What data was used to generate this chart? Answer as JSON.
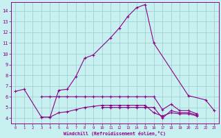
{
  "xlabel": "Windchill (Refroidissement éolien,°C)",
  "bg_color": "#c8f0f0",
  "grid_color": "#99cccc",
  "line_color": "#880088",
  "xlim": [
    -0.5,
    23.5
  ],
  "ylim": [
    3.5,
    14.8
  ],
  "xticks": [
    0,
    1,
    2,
    3,
    4,
    5,
    6,
    7,
    8,
    9,
    10,
    11,
    12,
    13,
    14,
    15,
    16,
    17,
    18,
    19,
    20,
    21,
    22,
    23
  ],
  "yticks": [
    4,
    5,
    6,
    7,
    8,
    9,
    10,
    11,
    12,
    13,
    14
  ],
  "lines": [
    {
      "x": [
        0,
        1,
        3,
        4,
        5,
        6,
        7,
        8,
        9,
        11,
        12,
        13,
        14,
        15,
        16,
        20,
        22,
        23
      ],
      "y": [
        6.5,
        6.7,
        4.1,
        4.1,
        6.6,
        6.7,
        7.9,
        9.6,
        9.9,
        11.5,
        12.4,
        13.5,
        14.3,
        14.6,
        11.0,
        6.1,
        5.7,
        4.7
      ]
    },
    {
      "x": [
        3,
        4,
        5,
        6,
        7,
        8,
        9,
        10,
        11,
        12,
        13,
        14,
        15,
        16,
        17,
        18,
        19,
        20,
        21
      ],
      "y": [
        6.0,
        6.0,
        6.0,
        6.0,
        6.0,
        6.0,
        6.0,
        6.0,
        6.0,
        6.0,
        6.0,
        6.0,
        6.0,
        6.0,
        4.8,
        5.3,
        4.7,
        4.7,
        4.4
      ]
    },
    {
      "x": [
        10,
        11,
        12,
        13,
        14,
        15,
        16,
        17,
        18,
        19,
        20,
        21
      ],
      "y": [
        5.0,
        5.0,
        5.0,
        5.0,
        5.0,
        5.0,
        5.0,
        4.0,
        4.7,
        4.5,
        4.5,
        4.3
      ]
    },
    {
      "x": [
        3,
        4,
        5,
        6,
        7,
        8,
        9,
        10,
        11,
        12,
        13,
        14,
        15,
        16,
        17,
        18,
        19,
        20,
        21
      ],
      "y": [
        4.1,
        4.1,
        4.5,
        4.6,
        4.8,
        5.0,
        5.1,
        5.2,
        5.2,
        5.2,
        5.2,
        5.2,
        5.2,
        4.5,
        4.2,
        4.5,
        4.4,
        4.4,
        4.2
      ]
    }
  ]
}
